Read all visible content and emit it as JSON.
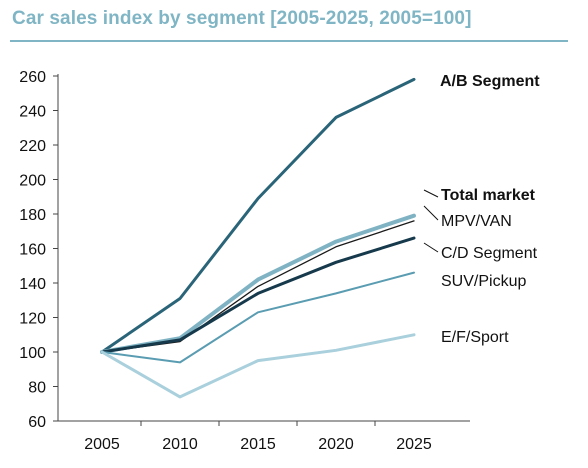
{
  "chart_data": {
    "type": "line",
    "title": "Car sales index by segment [2005-2025, 2005=100]",
    "x": [
      2005,
      2010,
      2015,
      2020,
      2025
    ],
    "ylim": [
      60,
      260
    ],
    "yticks": [
      60,
      80,
      100,
      120,
      140,
      160,
      180,
      200,
      220,
      240,
      260
    ],
    "grid": false,
    "legend": "direct labels at line ends",
    "series": [
      {
        "name": "A/B Segment",
        "values": [
          100,
          131,
          189,
          236,
          258
        ],
        "color": "#2a6478",
        "bold_label": true
      },
      {
        "name": "Total market",
        "values": [
          100,
          108,
          142,
          164,
          179
        ],
        "color": "#7fb3c3",
        "bold_label": true
      },
      {
        "name": "MPV/VAN",
        "values": [
          100,
          106,
          138,
          161,
          176
        ],
        "color": "#1a1a1a",
        "bold_label": false
      },
      {
        "name": "C/D Segment",
        "values": [
          100,
          107,
          134,
          152,
          166
        ],
        "color": "#163a4c",
        "bold_label": false
      },
      {
        "name": "SUV/Pickup",
        "values": [
          100,
          94,
          123,
          134,
          146
        ],
        "color": "#5a9cb1",
        "bold_label": false
      },
      {
        "name": "E/F/Sport",
        "values": [
          100,
          74,
          95,
          101,
          110
        ],
        "color": "#a9d0dc",
        "bold_label": false
      }
    ]
  }
}
